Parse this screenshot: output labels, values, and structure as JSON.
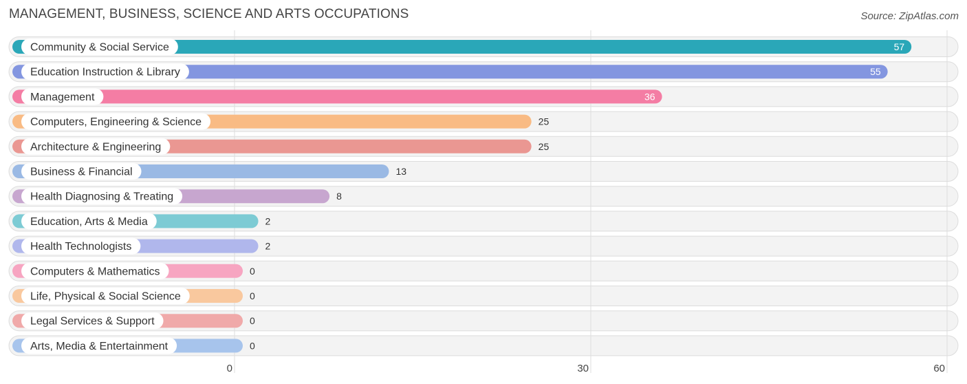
{
  "header": {
    "title": "MANAGEMENT, BUSINESS, SCIENCE AND ARTS OCCUPATIONS",
    "source": "Source: ZipAtlas.com"
  },
  "chart_data": {
    "type": "bar",
    "orientation": "horizontal",
    "title": "MANAGEMENT, BUSINESS, SCIENCE AND ARTS OCCUPATIONS",
    "xlabel": "",
    "ylabel": "",
    "xlim": [
      0,
      60
    ],
    "ticks": [
      0,
      30,
      60
    ],
    "grid": true,
    "legend": "none",
    "categories": [
      "Community & Social Service",
      "Education Instruction & Library",
      "Management",
      "Computers, Engineering & Science",
      "Architecture & Engineering",
      "Business & Financial",
      "Health Diagnosing & Treating",
      "Education, Arts & Media",
      "Health Technologists",
      "Computers & Mathematics",
      "Life, Physical & Social Science",
      "Legal Services & Support",
      "Arts, Media & Entertainment"
    ],
    "values": [
      57,
      55,
      36,
      25,
      25,
      13,
      8,
      2,
      2,
      0,
      0,
      0,
      0
    ],
    "colors": [
      "#2aa7b8",
      "#8396e0",
      "#f47da4",
      "#f9bb84",
      "#ea9792",
      "#9ab9e4",
      "#c7a6cf",
      "#7dcbd4",
      "#b0b7ec",
      "#f7a5c1",
      "#f9c89e",
      "#f0a9a9",
      "#a7c4ec"
    ]
  }
}
